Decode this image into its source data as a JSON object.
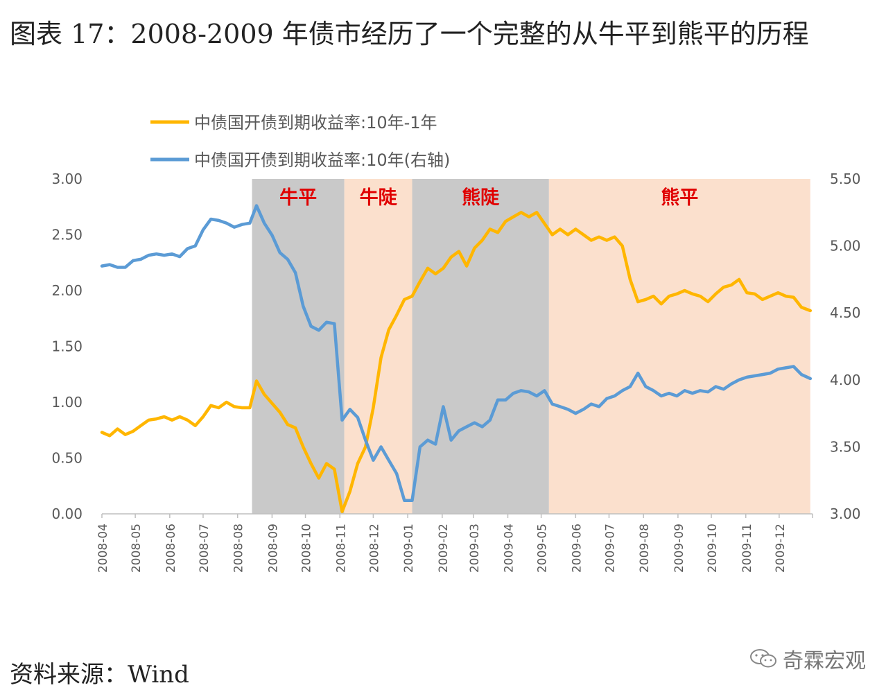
{
  "page": {
    "title": "图表 17：2008-2009 年债市经历了一个完整的从牛平到熊平的历程",
    "source": "资料来源：Wind",
    "watermark": "奇霖宏观"
  },
  "colors": {
    "spread": "#FFB600",
    "yield10y": "#5B9BD5",
    "shade_gray": "#C9C9C9",
    "shade_peach": "#FBE0CD",
    "phase_label": "#E00000",
    "axis_text": "#595959"
  },
  "chart_data": {
    "type": "line",
    "title": "",
    "xlabel": "",
    "ylabel": "",
    "x_ticks": [
      "2008-04",
      "2008-05",
      "2008-06",
      "2008-07",
      "2008-08",
      "2008-09",
      "2008-10",
      "2008-11",
      "2008-12",
      "2009-01",
      "2009-02",
      "2009-03",
      "2009-04",
      "2009-05",
      "2009-06",
      "2009-07",
      "2009-08",
      "2009-09",
      "2009-10",
      "2009-11",
      "2009-12"
    ],
    "y_left": {
      "lim": [
        0,
        3.0
      ],
      "ticks": [
        "0.00",
        "0.50",
        "1.00",
        "1.50",
        "2.00",
        "2.50",
        "3.00"
      ]
    },
    "y_right": {
      "lim": [
        3.0,
        5.5
      ],
      "ticks": [
        "3.00",
        "3.50",
        "4.00",
        "4.50",
        "5.00",
        "5.50"
      ]
    },
    "legend": {
      "position": "top-left"
    },
    "phases": [
      {
        "label": "牛平",
        "start": "2008-08-14",
        "end": "2008-11-05",
        "shade": "gray"
      },
      {
        "label": "牛陡",
        "start": "2008-11-05",
        "end": "2009-01-05",
        "shade": "peach"
      },
      {
        "label": "熊陡",
        "start": "2009-01-05",
        "end": "2009-05-08",
        "shade": "gray"
      },
      {
        "label": "熊平",
        "start": "2009-05-08",
        "end": "2009-12-29",
        "shade": "peach"
      }
    ],
    "series": [
      {
        "name": "中债国开债到期收益率:10年-1年",
        "axis": "left",
        "points": [
          [
            "2008-04-01",
            0.73
          ],
          [
            "2008-04-08",
            0.7
          ],
          [
            "2008-04-15",
            0.76
          ],
          [
            "2008-04-22",
            0.71
          ],
          [
            "2008-04-29",
            0.74
          ],
          [
            "2008-05-06",
            0.79
          ],
          [
            "2008-05-13",
            0.84
          ],
          [
            "2008-05-20",
            0.85
          ],
          [
            "2008-05-27",
            0.87
          ],
          [
            "2008-06-03",
            0.84
          ],
          [
            "2008-06-10",
            0.87
          ],
          [
            "2008-06-17",
            0.84
          ],
          [
            "2008-06-24",
            0.79
          ],
          [
            "2008-07-01",
            0.87
          ],
          [
            "2008-07-08",
            0.97
          ],
          [
            "2008-07-15",
            0.95
          ],
          [
            "2008-07-22",
            1.0
          ],
          [
            "2008-07-29",
            0.96
          ],
          [
            "2008-08-05",
            0.95
          ],
          [
            "2008-08-12",
            0.95
          ],
          [
            "2008-08-18",
            1.19
          ],
          [
            "2008-08-25",
            1.07
          ],
          [
            "2008-09-01",
            0.99
          ],
          [
            "2008-09-08",
            0.91
          ],
          [
            "2008-09-15",
            0.8
          ],
          [
            "2008-09-22",
            0.77
          ],
          [
            "2008-09-29",
            0.6
          ],
          [
            "2008-10-06",
            0.45
          ],
          [
            "2008-10-13",
            0.32
          ],
          [
            "2008-10-20",
            0.45
          ],
          [
            "2008-10-27",
            0.4
          ],
          [
            "2008-11-03",
            0.02
          ],
          [
            "2008-11-10",
            0.2
          ],
          [
            "2008-11-17",
            0.45
          ],
          [
            "2008-11-24",
            0.6
          ],
          [
            "2008-12-01",
            0.95
          ],
          [
            "2008-12-08",
            1.4
          ],
          [
            "2008-12-15",
            1.65
          ],
          [
            "2008-12-22",
            1.78
          ],
          [
            "2008-12-29",
            1.92
          ],
          [
            "2009-01-05",
            1.95
          ],
          [
            "2009-01-12",
            2.08
          ],
          [
            "2009-01-19",
            2.2
          ],
          [
            "2009-01-26",
            2.15
          ],
          [
            "2009-02-02",
            2.2
          ],
          [
            "2009-02-09",
            2.3
          ],
          [
            "2009-02-16",
            2.35
          ],
          [
            "2009-02-23",
            2.22
          ],
          [
            "2009-03-02",
            2.38
          ],
          [
            "2009-03-09",
            2.45
          ],
          [
            "2009-03-16",
            2.55
          ],
          [
            "2009-03-23",
            2.52
          ],
          [
            "2009-03-30",
            2.62
          ],
          [
            "2009-04-06",
            2.66
          ],
          [
            "2009-04-13",
            2.7
          ],
          [
            "2009-04-20",
            2.66
          ],
          [
            "2009-04-27",
            2.7
          ],
          [
            "2009-05-04",
            2.6
          ],
          [
            "2009-05-11",
            2.5
          ],
          [
            "2009-05-18",
            2.55
          ],
          [
            "2009-05-25",
            2.5
          ],
          [
            "2009-06-01",
            2.55
          ],
          [
            "2009-06-08",
            2.5
          ],
          [
            "2009-06-15",
            2.45
          ],
          [
            "2009-06-22",
            2.48
          ],
          [
            "2009-06-29",
            2.45
          ],
          [
            "2009-07-06",
            2.48
          ],
          [
            "2009-07-13",
            2.4
          ],
          [
            "2009-07-20",
            2.1
          ],
          [
            "2009-07-27",
            1.9
          ],
          [
            "2009-08-03",
            1.92
          ],
          [
            "2009-08-10",
            1.95
          ],
          [
            "2009-08-17",
            1.88
          ],
          [
            "2009-08-24",
            1.95
          ],
          [
            "2009-08-31",
            1.97
          ],
          [
            "2009-09-07",
            2.0
          ],
          [
            "2009-09-14",
            1.97
          ],
          [
            "2009-09-21",
            1.95
          ],
          [
            "2009-09-28",
            1.9
          ],
          [
            "2009-10-05",
            1.97
          ],
          [
            "2009-10-12",
            2.03
          ],
          [
            "2009-10-19",
            2.05
          ],
          [
            "2009-10-26",
            2.1
          ],
          [
            "2009-11-02",
            1.98
          ],
          [
            "2009-11-09",
            1.97
          ],
          [
            "2009-11-16",
            1.92
          ],
          [
            "2009-11-23",
            1.95
          ],
          [
            "2009-11-30",
            1.98
          ],
          [
            "2009-12-07",
            1.95
          ],
          [
            "2009-12-14",
            1.94
          ],
          [
            "2009-12-21",
            1.85
          ],
          [
            "2009-12-29",
            1.82
          ]
        ]
      },
      {
        "name": "中债国开债到期收益率:10年(右轴)",
        "axis": "right",
        "points": [
          [
            "2008-04-01",
            4.85
          ],
          [
            "2008-04-08",
            4.86
          ],
          [
            "2008-04-15",
            4.84
          ],
          [
            "2008-04-22",
            4.84
          ],
          [
            "2008-04-29",
            4.89
          ],
          [
            "2008-05-06",
            4.9
          ],
          [
            "2008-05-13",
            4.93
          ],
          [
            "2008-05-20",
            4.94
          ],
          [
            "2008-05-27",
            4.93
          ],
          [
            "2008-06-03",
            4.94
          ],
          [
            "2008-06-10",
            4.92
          ],
          [
            "2008-06-17",
            4.98
          ],
          [
            "2008-06-24",
            5.0
          ],
          [
            "2008-07-01",
            5.12
          ],
          [
            "2008-07-08",
            5.2
          ],
          [
            "2008-07-15",
            5.19
          ],
          [
            "2008-07-22",
            5.17
          ],
          [
            "2008-07-29",
            5.14
          ],
          [
            "2008-08-05",
            5.16
          ],
          [
            "2008-08-12",
            5.17
          ],
          [
            "2008-08-18",
            5.3
          ],
          [
            "2008-08-25",
            5.17
          ],
          [
            "2008-09-01",
            5.08
          ],
          [
            "2008-09-08",
            4.95
          ],
          [
            "2008-09-15",
            4.9
          ],
          [
            "2008-09-22",
            4.8
          ],
          [
            "2008-09-29",
            4.55
          ],
          [
            "2008-10-06",
            4.4
          ],
          [
            "2008-10-13",
            4.37
          ],
          [
            "2008-10-20",
            4.43
          ],
          [
            "2008-10-27",
            4.42
          ],
          [
            "2008-11-03",
            3.7
          ],
          [
            "2008-11-10",
            3.78
          ],
          [
            "2008-11-17",
            3.72
          ],
          [
            "2008-11-24",
            3.55
          ],
          [
            "2008-12-01",
            3.4
          ],
          [
            "2008-12-08",
            3.5
          ],
          [
            "2008-12-15",
            3.4
          ],
          [
            "2008-12-22",
            3.3
          ],
          [
            "2008-12-29",
            3.1
          ],
          [
            "2009-01-05",
            3.1
          ],
          [
            "2009-01-12",
            3.5
          ],
          [
            "2009-01-19",
            3.55
          ],
          [
            "2009-01-26",
            3.52
          ],
          [
            "2009-02-02",
            3.8
          ],
          [
            "2009-02-09",
            3.55
          ],
          [
            "2009-02-16",
            3.62
          ],
          [
            "2009-02-23",
            3.65
          ],
          [
            "2009-03-02",
            3.68
          ],
          [
            "2009-03-09",
            3.65
          ],
          [
            "2009-03-16",
            3.7
          ],
          [
            "2009-03-23",
            3.85
          ],
          [
            "2009-03-30",
            3.85
          ],
          [
            "2009-04-06",
            3.9
          ],
          [
            "2009-04-13",
            3.92
          ],
          [
            "2009-04-20",
            3.91
          ],
          [
            "2009-04-27",
            3.88
          ],
          [
            "2009-05-04",
            3.92
          ],
          [
            "2009-05-11",
            3.82
          ],
          [
            "2009-05-18",
            3.8
          ],
          [
            "2009-05-25",
            3.78
          ],
          [
            "2009-06-01",
            3.75
          ],
          [
            "2009-06-08",
            3.78
          ],
          [
            "2009-06-15",
            3.82
          ],
          [
            "2009-06-22",
            3.8
          ],
          [
            "2009-06-29",
            3.86
          ],
          [
            "2009-07-06",
            3.88
          ],
          [
            "2009-07-13",
            3.92
          ],
          [
            "2009-07-20",
            3.95
          ],
          [
            "2009-07-27",
            4.05
          ],
          [
            "2009-08-03",
            3.95
          ],
          [
            "2009-08-10",
            3.92
          ],
          [
            "2009-08-17",
            3.88
          ],
          [
            "2009-08-24",
            3.9
          ],
          [
            "2009-08-31",
            3.88
          ],
          [
            "2009-09-07",
            3.92
          ],
          [
            "2009-09-14",
            3.9
          ],
          [
            "2009-09-21",
            3.92
          ],
          [
            "2009-09-28",
            3.91
          ],
          [
            "2009-10-05",
            3.95
          ],
          [
            "2009-10-12",
            3.93
          ],
          [
            "2009-10-19",
            3.97
          ],
          [
            "2009-10-26",
            4.0
          ],
          [
            "2009-11-02",
            4.02
          ],
          [
            "2009-11-09",
            4.03
          ],
          [
            "2009-11-16",
            4.04
          ],
          [
            "2009-11-23",
            4.05
          ],
          [
            "2009-11-30",
            4.08
          ],
          [
            "2009-12-07",
            4.09
          ],
          [
            "2009-12-14",
            4.1
          ],
          [
            "2009-12-21",
            4.04
          ],
          [
            "2009-12-29",
            4.01
          ]
        ]
      }
    ]
  }
}
